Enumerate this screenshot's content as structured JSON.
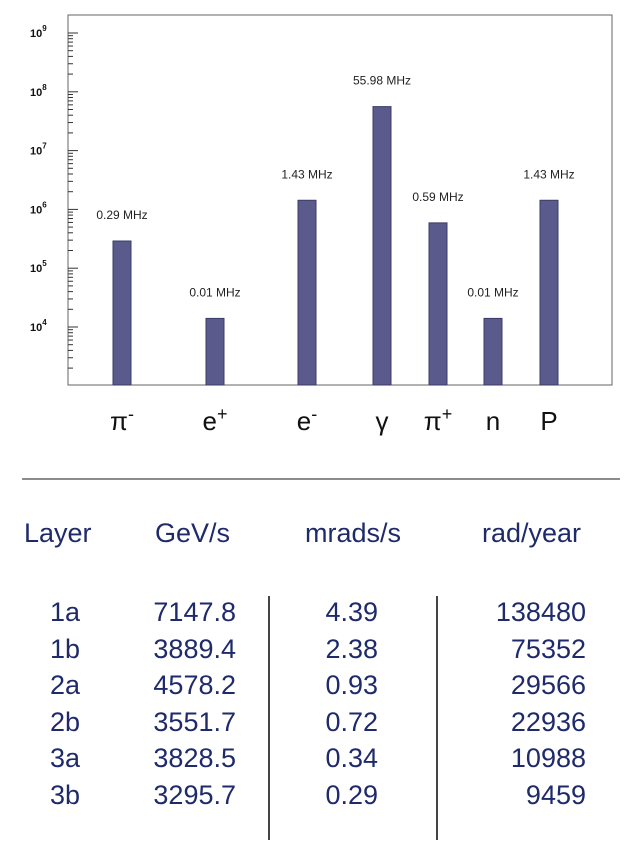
{
  "chart_data": {
    "type": "bar",
    "yscale": "log",
    "ylim": [
      1000,
      1000000000
    ],
    "categories": [
      "π⁻",
      "e⁺",
      "e⁻",
      "γ",
      "π⁺",
      "n",
      "P"
    ],
    "category_labels": [
      {
        "base": "π",
        "sup": "-"
      },
      {
        "base": "e",
        "sup": "+"
      },
      {
        "base": "e",
        "sup": "-"
      },
      {
        "base": "γ",
        "sup": ""
      },
      {
        "base": "π",
        "sup": "+"
      },
      {
        "base": "n",
        "sup": ""
      },
      {
        "base": "P",
        "sup": ""
      }
    ],
    "values": [
      290000,
      14000,
      1430000,
      55980000,
      590000,
      14000,
      1430000
    ],
    "data_labels": [
      "0.29 MHz",
      "0.01 MHz",
      "1.43 MHz",
      "55.98 MHz",
      "0.59 MHz",
      "0.01 MHz",
      "1.43 MHz"
    ],
    "y_ticks": [
      {
        "value": 10000,
        "base": "10",
        "exp": "4"
      },
      {
        "value": 100000,
        "base": "10",
        "exp": "5"
      },
      {
        "value": 1000000,
        "base": "10",
        "exp": "6"
      },
      {
        "value": 10000000,
        "base": "10",
        "exp": "7"
      },
      {
        "value": 100000000,
        "base": "10",
        "exp": "8"
      },
      {
        "value": 1000000000,
        "base": "10",
        "exp": "9"
      }
    ],
    "bar_color": "#5a5a8c",
    "grid": false,
    "title": "",
    "xlabel": "",
    "ylabel": ""
  },
  "table": {
    "headers": [
      "Layer",
      "GeV/s",
      "mrads/s",
      "rad/year"
    ],
    "rows": [
      [
        "1a",
        "7147.8",
        "4.39",
        "138480"
      ],
      [
        "1b",
        "3889.4",
        "2.38",
        "75352"
      ],
      [
        "2a",
        "4578.2",
        "0.93",
        "29566"
      ],
      [
        "2b",
        "3551.7",
        "0.72",
        "22936"
      ],
      [
        "3a",
        "3828.5",
        "0.34",
        "10988"
      ],
      [
        "3b",
        "3295.7",
        "0.29",
        "9459"
      ]
    ],
    "text_color": "#1f2a6b"
  }
}
